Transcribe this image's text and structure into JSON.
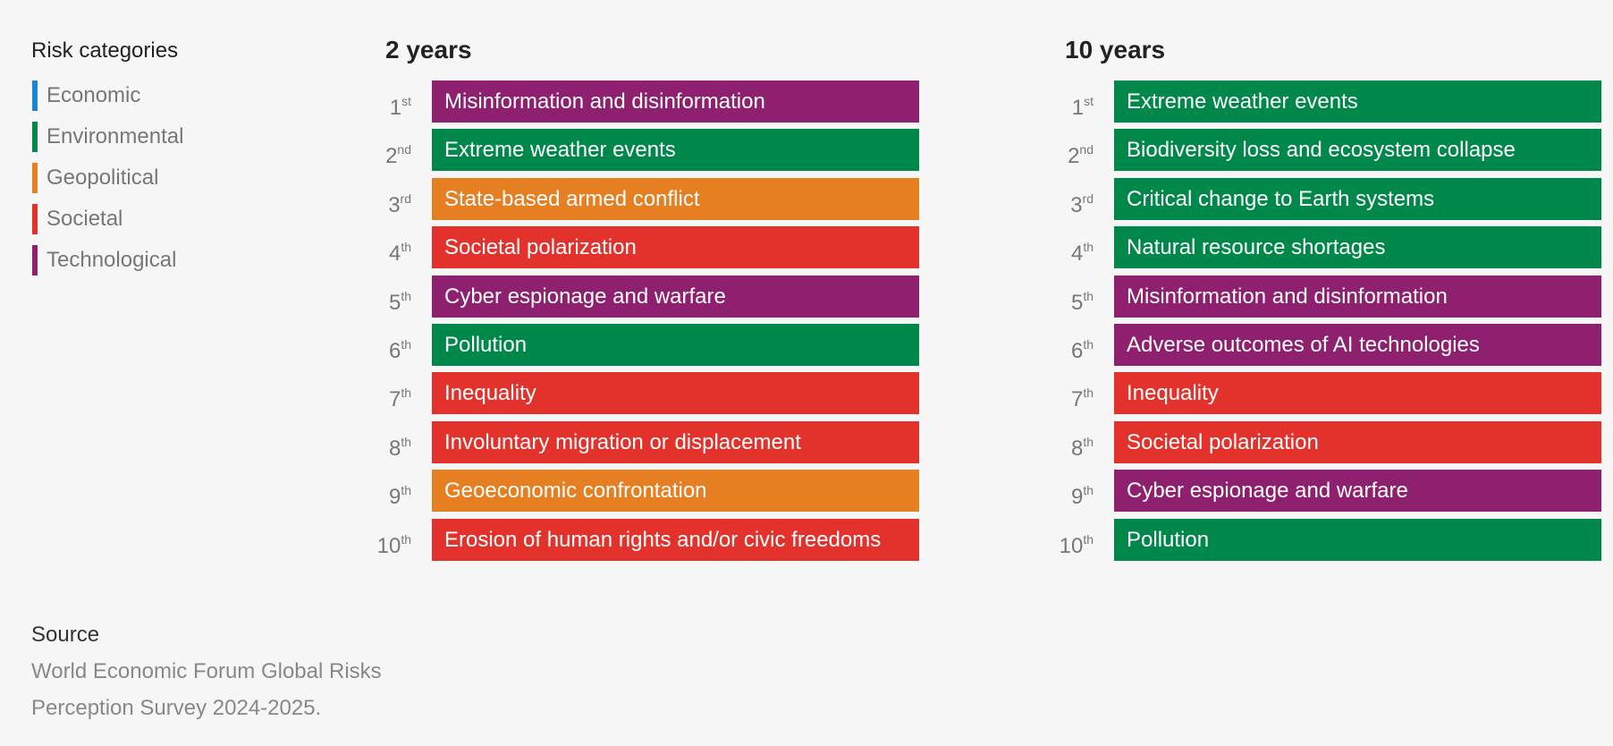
{
  "legend": {
    "title": "Risk categories",
    "categories": [
      {
        "label": "Economic",
        "color": "#1b86d2"
      },
      {
        "label": "Environmental",
        "color": "#00874a"
      },
      {
        "label": "Geopolitical",
        "color": "#e67e22"
      },
      {
        "label": "Societal",
        "color": "#e3312b"
      },
      {
        "label": "Technological",
        "color": "#8f1f6f"
      }
    ]
  },
  "panels": [
    {
      "title": "2 years",
      "items": [
        {
          "rank": "1",
          "suffix": "st",
          "label": "Misinformation and disinformation",
          "color": "#8f1f6f"
        },
        {
          "rank": "2",
          "suffix": "nd",
          "label": "Extreme weather events",
          "color": "#00874a"
        },
        {
          "rank": "3",
          "suffix": "rd",
          "label": "State-based armed conflict",
          "color": "#e67e22"
        },
        {
          "rank": "4",
          "suffix": "th",
          "label": "Societal polarization",
          "color": "#e3312b"
        },
        {
          "rank": "5",
          "suffix": "th",
          "label": "Cyber espionage and warfare",
          "color": "#8f1f6f"
        },
        {
          "rank": "6",
          "suffix": "th",
          "label": "Pollution",
          "color": "#00874a"
        },
        {
          "rank": "7",
          "suffix": "th",
          "label": "Inequality",
          "color": "#e3312b"
        },
        {
          "rank": "8",
          "suffix": "th",
          "label": "Involuntary migration or displacement",
          "color": "#e3312b"
        },
        {
          "rank": "9",
          "suffix": "th",
          "label": "Geoeconomic confrontation",
          "color": "#e67e22"
        },
        {
          "rank": "10",
          "suffix": "th",
          "label": "Erosion of human rights and/or civic freedoms",
          "color": "#e3312b"
        }
      ]
    },
    {
      "title": "10 years",
      "items": [
        {
          "rank": "1",
          "suffix": "st",
          "label": "Extreme weather events",
          "color": "#00874a"
        },
        {
          "rank": "2",
          "suffix": "nd",
          "label": "Biodiversity loss and ecosystem collapse",
          "color": "#00874a"
        },
        {
          "rank": "3",
          "suffix": "rd",
          "label": "Critical change to Earth systems",
          "color": "#00874a"
        },
        {
          "rank": "4",
          "suffix": "th",
          "label": "Natural resource shortages",
          "color": "#00874a"
        },
        {
          "rank": "5",
          "suffix": "th",
          "label": "Misinformation and disinformation",
          "color": "#8f1f6f"
        },
        {
          "rank": "6",
          "suffix": "th",
          "label": "Adverse outcomes of AI technologies",
          "color": "#8f1f6f"
        },
        {
          "rank": "7",
          "suffix": "th",
          "label": "Inequality",
          "color": "#e3312b"
        },
        {
          "rank": "8",
          "suffix": "th",
          "label": "Societal polarization",
          "color": "#e3312b"
        },
        {
          "rank": "9",
          "suffix": "th",
          "label": "Cyber espionage and warfare",
          "color": "#8f1f6f"
        },
        {
          "rank": "10",
          "suffix": "th",
          "label": "Pollution",
          "color": "#00874a"
        }
      ]
    }
  ],
  "source": {
    "title": "Source",
    "lines": [
      "World Economic Forum Global Risks",
      "Perception Survey 2024-2025."
    ]
  }
}
